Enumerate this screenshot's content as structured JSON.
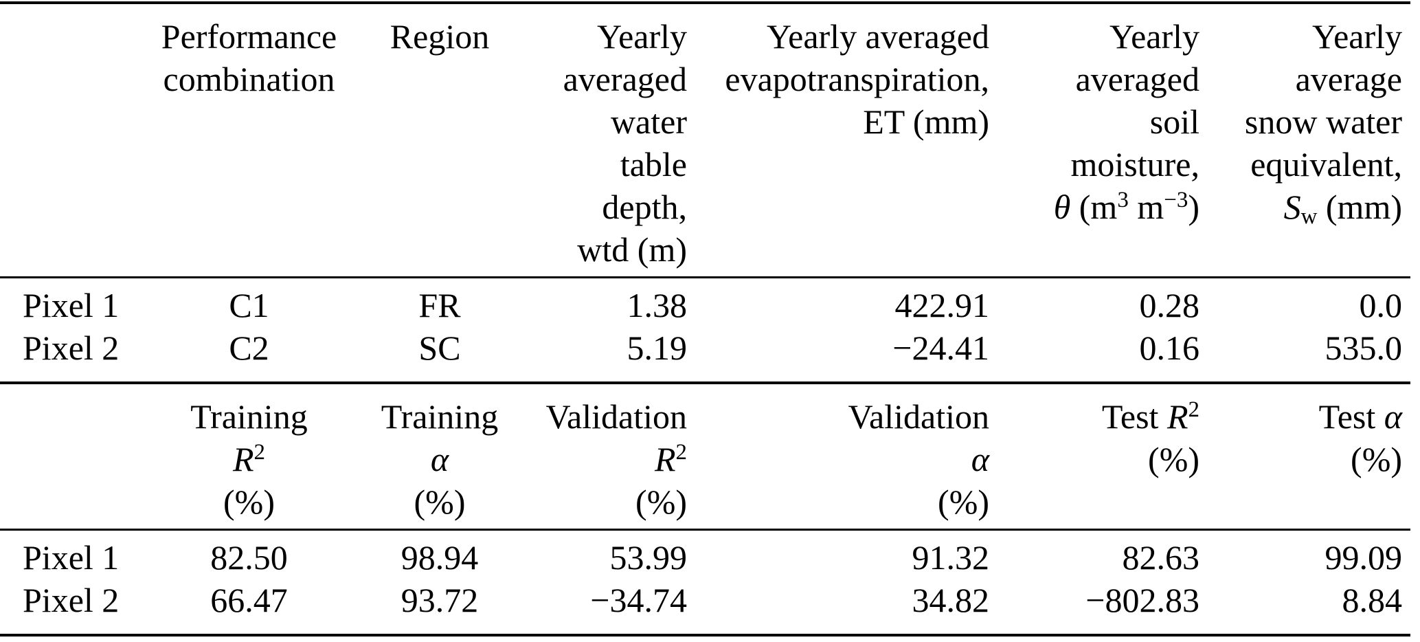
{
  "colors": {
    "text": "#000000",
    "background": "#ffffff",
    "rule": "#000000"
  },
  "table": {
    "section1": {
      "header_cells": [
        {
          "lines": []
        },
        {
          "lines": [
            [
              [
                "",
                "Performance"
              ]
            ],
            [
              [
                "",
                "combination"
              ]
            ]
          ]
        },
        {
          "lines": [
            [
              [
                "",
                "Region"
              ]
            ]
          ]
        },
        {
          "lines": [
            [
              [
                "",
                "Yearly"
              ]
            ],
            [
              [
                "",
                "averaged"
              ]
            ],
            [
              [
                "",
                "water"
              ]
            ],
            [
              [
                "",
                "table"
              ]
            ],
            [
              [
                "",
                "depth,"
              ]
            ],
            [
              [
                "",
                "wtd (m)"
              ]
            ]
          ]
        },
        {
          "lines": [
            [
              [
                "",
                "Yearly averaged"
              ]
            ],
            [
              [
                "",
                "evapotranspiration,"
              ]
            ],
            [
              [
                "",
                "ET (mm)"
              ]
            ]
          ]
        },
        {
          "lines": [
            [
              [
                "",
                "Yearly"
              ]
            ],
            [
              [
                "",
                "averaged"
              ]
            ],
            [
              [
                "",
                "soil"
              ]
            ],
            [
              [
                "",
                "moisture,"
              ]
            ],
            [
              [
                "i",
                "θ"
              ],
              [
                "",
                " (m"
              ],
              [
                "sup",
                "3"
              ],
              [
                "",
                " m"
              ],
              [
                "sup",
                "−3"
              ],
              [
                "",
                ")"
              ]
            ]
          ]
        },
        {
          "lines": [
            [
              [
                "",
                "Yearly"
              ]
            ],
            [
              [
                "",
                "average"
              ]
            ],
            [
              [
                "",
                "snow water"
              ]
            ],
            [
              [
                "",
                "equivalent,"
              ]
            ],
            [
              [
                "i",
                "S"
              ],
              [
                "sub",
                "w"
              ],
              [
                "",
                " (mm)"
              ]
            ]
          ]
        }
      ],
      "rows": [
        [
          "Pixel 1",
          "C1",
          "FR",
          "1.38",
          "422.91",
          "0.28",
          "0.0"
        ],
        [
          "Pixel 2",
          "C2",
          "SC",
          "5.19",
          "−24.41",
          "0.16",
          "535.0"
        ]
      ]
    },
    "section2": {
      "header_cells": [
        {
          "lines": []
        },
        {
          "lines": [
            [
              [
                "",
                "Training"
              ]
            ],
            [
              [
                "i",
                "R"
              ],
              [
                "sup",
                "2"
              ]
            ],
            [
              [
                "",
                "(%)"
              ]
            ]
          ]
        },
        {
          "lines": [
            [
              [
                "",
                "Training"
              ]
            ],
            [
              [
                "i",
                "α"
              ]
            ],
            [
              [
                "",
                "(%)"
              ]
            ]
          ]
        },
        {
          "lines": [
            [
              [
                "",
                "Validation"
              ]
            ],
            [
              [
                "i",
                "R"
              ],
              [
                "sup",
                "2"
              ]
            ],
            [
              [
                "",
                "(%)"
              ]
            ]
          ]
        },
        {
          "lines": [
            [
              [
                "",
                "Validation"
              ]
            ],
            [
              [
                "i",
                "α"
              ]
            ],
            [
              [
                "",
                "(%)"
              ]
            ]
          ]
        },
        {
          "lines": [
            [
              [
                "",
                "Test "
              ],
              [
                "i",
                "R"
              ],
              [
                "sup",
                "2"
              ]
            ],
            [
              [
                "",
                "(%)"
              ]
            ]
          ]
        },
        {
          "lines": [
            [
              [
                "",
                "Test "
              ],
              [
                "i",
                "α"
              ]
            ],
            [
              [
                "",
                "(%)"
              ]
            ]
          ]
        }
      ],
      "rows": [
        [
          "Pixel 1",
          "82.50",
          "98.94",
          "53.99",
          "91.32",
          "82.63",
          "99.09"
        ],
        [
          "Pixel 2",
          "66.47",
          "93.72",
          "−34.74",
          "34.82",
          "−802.83",
          "8.84"
        ]
      ]
    }
  }
}
